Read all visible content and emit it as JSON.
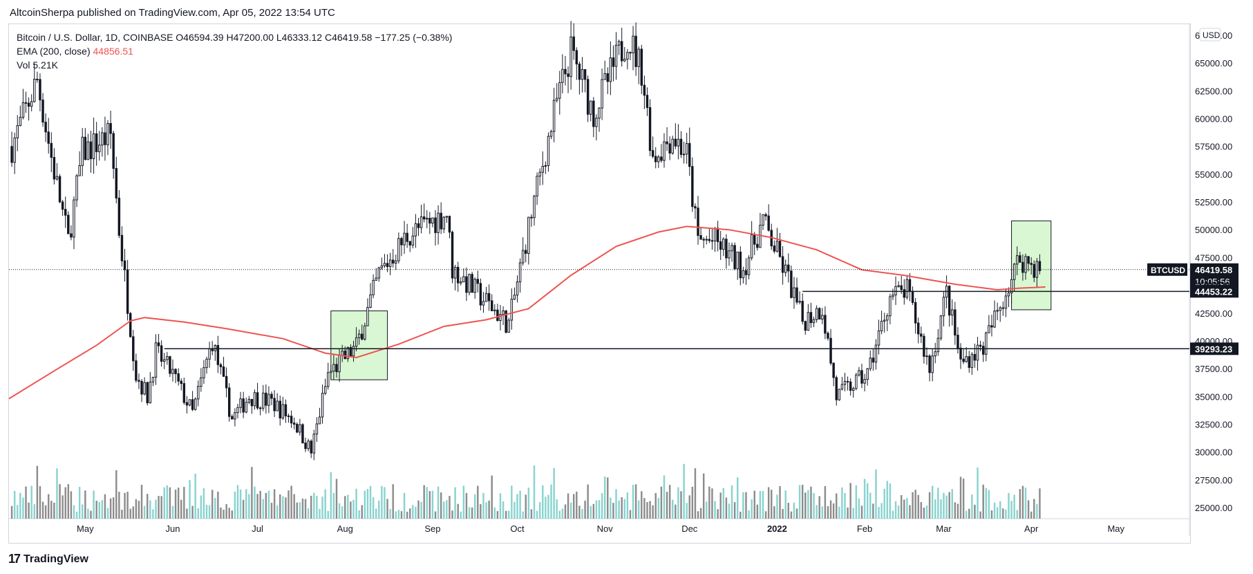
{
  "header": {
    "text": "AltcoinSherpa published on TradingView.com, Apr 05, 2022 13:54 UTC"
  },
  "legend": {
    "symbol": "Bitcoin / U.S. Dollar, 1D, COINBASE",
    "open": "O46594.39",
    "high": "H47200.00",
    "low": "L46333.12",
    "close": "C46419.58",
    "change": "−177.25 (−0.38%)",
    "ema_label": "EMA (200, close)",
    "ema_value": "44856.51",
    "vol_label": "Vol",
    "vol_value": "5.21K"
  },
  "footer": {
    "brand": "TradingView",
    "logo_glyph": "17"
  },
  "colors": {
    "up": "#131722",
    "down": "#131722",
    "ema": "#ef5350",
    "vol_up": "#89d3cf",
    "vol_down": "#8c8c8c",
    "box": "#d9f7d2",
    "axis_text": "#131722"
  },
  "chart_data": {
    "type": "candlestick",
    "currency": "USD",
    "ylim": [
      24000,
      68500
    ],
    "yticks": [
      "25000.00",
      "27500.00",
      "30000.00",
      "32500.00",
      "35000.00",
      "37500.00",
      "40000.00",
      "42500.00",
      "45000.00",
      "47500.00",
      "50000.00",
      "52500.00",
      "55000.00",
      "57500.00",
      "60000.00",
      "62500.00",
      "65000.00",
      "67500.00"
    ],
    "xlabels": [
      {
        "date": "2021-05-01",
        "label": "May"
      },
      {
        "date": "2021-06-01",
        "label": "Jun"
      },
      {
        "date": "2021-07-01",
        "label": "Jul"
      },
      {
        "date": "2021-08-01",
        "label": "Aug"
      },
      {
        "date": "2021-09-01",
        "label": "Sep"
      },
      {
        "date": "2021-10-01",
        "label": "Oct"
      },
      {
        "date": "2021-11-01",
        "label": "Nov"
      },
      {
        "date": "2021-12-01",
        "label": "Dec"
      },
      {
        "date": "2022-01-01",
        "label": "2022"
      },
      {
        "date": "2022-02-01",
        "label": "Feb"
      },
      {
        "date": "2022-03-01",
        "label": "Mar"
      },
      {
        "date": "2022-04-01",
        "label": "Apr"
      },
      {
        "date": "2022-05-01",
        "label": "May"
      }
    ],
    "x_range": [
      "2021-04-04",
      "2022-05-27"
    ],
    "price_path": [
      [
        "2021-04-05",
        57500
      ],
      [
        "2021-04-14",
        63500
      ],
      [
        "2021-04-19",
        56500
      ],
      [
        "2021-04-25",
        49000
      ],
      [
        "2021-04-30",
        57000
      ],
      [
        "2021-05-10",
        58500
      ],
      [
        "2021-05-13",
        50000
      ],
      [
        "2021-05-19",
        37000
      ],
      [
        "2021-05-23",
        35000
      ],
      [
        "2021-05-26",
        39000
      ],
      [
        "2021-06-01",
        37000
      ],
      [
        "2021-06-08",
        33500
      ],
      [
        "2021-06-15",
        40000
      ],
      [
        "2021-06-22",
        33000
      ],
      [
        "2021-06-28",
        35000
      ],
      [
        "2021-07-06",
        34500
      ],
      [
        "2021-07-14",
        32800
      ],
      [
        "2021-07-20",
        30000
      ],
      [
        "2021-07-26",
        37000
      ],
      [
        "2021-08-05",
        39500
      ],
      [
        "2021-08-13",
        46000
      ],
      [
        "2021-08-23",
        49500
      ],
      [
        "2021-09-06",
        51500
      ],
      [
        "2021-09-08",
        46500
      ],
      [
        "2021-09-20",
        43500
      ],
      [
        "2021-09-28",
        41500
      ],
      [
        "2021-10-06",
        51500
      ],
      [
        "2021-10-15",
        61500
      ],
      [
        "2021-10-20",
        66000
      ],
      [
        "2021-10-28",
        60500
      ],
      [
        "2021-11-09",
        67500
      ],
      [
        "2021-11-14",
        64500
      ],
      [
        "2021-11-18",
        56500
      ],
      [
        "2021-11-25",
        58500
      ],
      [
        "2021-11-30",
        56800
      ],
      [
        "2021-12-04",
        49000
      ],
      [
        "2021-12-10",
        49000
      ],
      [
        "2021-12-20",
        46500
      ],
      [
        "2021-12-27",
        50800
      ],
      [
        "2022-01-05",
        45500
      ],
      [
        "2022-01-10",
        41800
      ],
      [
        "2022-01-17",
        43000
      ],
      [
        "2022-01-22",
        35000
      ],
      [
        "2022-02-02",
        37000
      ],
      [
        "2022-02-10",
        44000
      ],
      [
        "2022-02-16",
        44500
      ],
      [
        "2022-02-24",
        37500
      ],
      [
        "2022-03-02",
        44400
      ],
      [
        "2022-03-07",
        38000
      ],
      [
        "2022-03-15",
        39500
      ],
      [
        "2022-03-28",
        47500
      ],
      [
        "2022-04-04",
        46400
      ]
    ],
    "ema200": [
      [
        "2021-04-04",
        34800
      ],
      [
        "2021-04-20",
        37300
      ],
      [
        "2021-05-05",
        39600
      ],
      [
        "2021-05-17",
        41800
      ],
      [
        "2021-05-22",
        42100
      ],
      [
        "2021-06-05",
        41700
      ],
      [
        "2021-06-20",
        41100
      ],
      [
        "2021-07-10",
        40200
      ],
      [
        "2021-07-25",
        38900
      ],
      [
        "2021-08-05",
        38500
      ],
      [
        "2021-08-20",
        39700
      ],
      [
        "2021-09-05",
        41300
      ],
      [
        "2021-09-20",
        41900
      ],
      [
        "2021-10-05",
        42900
      ],
      [
        "2021-10-20",
        45900
      ],
      [
        "2021-11-05",
        48500
      ],
      [
        "2021-11-20",
        49800
      ],
      [
        "2021-11-30",
        50300
      ],
      [
        "2021-12-15",
        50000
      ],
      [
        "2021-12-30",
        49300
      ],
      [
        "2022-01-15",
        48200
      ],
      [
        "2022-01-31",
        46400
      ],
      [
        "2022-02-15",
        45900
      ],
      [
        "2022-03-05",
        45100
      ],
      [
        "2022-03-20",
        44600
      ],
      [
        "2022-03-28",
        44750
      ],
      [
        "2022-04-06",
        44850
      ]
    ],
    "hlines": [
      {
        "value": 39293.23,
        "label": "39293.23",
        "from": "2021-05-29"
      },
      {
        "value": 44453.22,
        "label": "44453.22",
        "from": "2022-01-10"
      }
    ],
    "current_price": {
      "value": 46419.58,
      "label": "46419.58",
      "symbol": "BTCUSD",
      "countdown": "10:05:56"
    },
    "boxes": [
      {
        "from": "2021-07-27",
        "to": "2021-08-16",
        "y0": 36500,
        "y1": 42700
      },
      {
        "from": "2022-03-25",
        "to": "2022-04-08",
        "y0": 42800,
        "y1": 50800
      }
    ],
    "volume_max_label": "scaled, no axis"
  }
}
